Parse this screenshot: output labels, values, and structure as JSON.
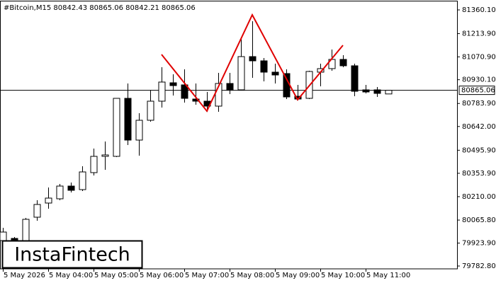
{
  "chart_data": {
    "type": "candlestick",
    "title": "#Bitcoin,M15  80842.43 80865.06 80842.21 80865.06",
    "logo": "InstaFintech",
    "categories": [
      "5 May 2026",
      null,
      null,
      null,
      "5 May 04:00",
      null,
      null,
      null,
      "5 May 05:00",
      null,
      null,
      null,
      "5 May 06:00",
      null,
      null,
      null,
      "5 May 07:00",
      null,
      null,
      null,
      "5 May 08:00",
      null,
      null,
      null,
      "5 May 09:00",
      null,
      null,
      null,
      "5 May 10:00",
      null,
      null,
      null,
      "5 May 11:00",
      null,
      null
    ],
    "open": [
      79939.7,
      79952.8,
      79917.9,
      80083.5,
      80170.6,
      80196.8,
      80275.2,
      80253.4,
      80358.0,
      80458.2,
      80458.2,
      80815.5,
      80558.4,
      80680.4,
      80798.0,
      80911.3,
      80898.3,
      80811.1,
      80798.0,
      80767.5,
      80907.0,
      80867.8,
      81072.5,
      81046.4,
      80976.7,
      80968.0,
      80828.5,
      80815.5,
      80976.7,
      80998.5,
      81055.1,
      81015.9,
      80867.8,
      80867.8,
      80842.43
    ],
    "high": [
      80018.2,
      79961.5,
      80079.1,
      80188.1,
      80266.5,
      80288.3,
      80297.0,
      80397.2,
      80506.1,
      80549.7,
      80815.5,
      80907.0,
      80724.0,
      80867.8,
      81007.2,
      80963.6,
      80994.1,
      80907.0,
      80854.7,
      80972.3,
      80972.3,
      81181.5,
      81290.4,
      81063.8,
      81029.0,
      80994.1,
      80898.3,
      80985.4,
      81029.0,
      81116.1,
      81081.3,
      81029.0,
      80898.3,
      80885.2,
      80865.06
    ],
    "low": [
      79917.9,
      79917.9,
      79896.1,
      80061.7,
      80135.8,
      80188.1,
      80236.0,
      80244.7,
      80340.6,
      80375.4,
      80453.8,
      80527.9,
      80462.6,
      80671.7,
      80758.8,
      80832.9,
      80789.3,
      80776.3,
      80732.7,
      80732.7,
      80841.6,
      80863.4,
      80941.8,
      80920.0,
      80907.0,
      80811.1,
      80802.4,
      80811.1,
      80889.5,
      80985.4,
      81007.2,
      80828.5,
      80846.0,
      80824.2,
      80842.21
    ],
    "close": [
      79992.0,
      79935.4,
      80070.4,
      80161.9,
      80201.1,
      80275.2,
      80249.1,
      80362.3,
      80458.2,
      80466.9,
      80815.5,
      80558.4,
      80680.4,
      80798.0,
      80915.7,
      80893.9,
      80815.5,
      80798.0,
      80767.5,
      80907.0,
      80867.8,
      81072.5,
      81046.4,
      80976.7,
      80959.3,
      80824.2,
      80811.1,
      80981.0,
      80998.5,
      81055.1,
      81015.9,
      80859.0,
      80854.7,
      80846.0,
      80865.06
    ],
    "bull_color": "#ffffff",
    "bear_color": "#000000",
    "ylim": [
      79765.4,
      81416.7
    ],
    "yticks": [
      {
        "value": 81360.1,
        "label": "81360.10"
      },
      {
        "value": 81213.9,
        "label": "81213.90"
      },
      {
        "value": 81070.9,
        "label": "81070.90"
      },
      {
        "value": 80930.1,
        "label": "80930.10"
      },
      {
        "value": 80783.9,
        "label": "80783.90"
      },
      {
        "value": 80642.0,
        "label": "80642.00"
      },
      {
        "value": 80495.9,
        "label": "80495.90"
      },
      {
        "value": 80353.9,
        "label": "80353.90"
      },
      {
        "value": 80210.0,
        "label": "80210.00"
      },
      {
        "value": 80065.8,
        "label": "80065.80"
      },
      {
        "value": 79923.9,
        "label": "79923.90"
      },
      {
        "value": 79782.8,
        "label": "79782.80"
      }
    ],
    "current_price": {
      "value": 80865.06,
      "label": "80865.06"
    },
    "pattern": {
      "color": "#e00000",
      "x": [
        14,
        18,
        22,
        26,
        30
      ],
      "values": [
        81085.6,
        80737.1,
        81329.6,
        80806.8,
        81142.3
      ]
    }
  }
}
